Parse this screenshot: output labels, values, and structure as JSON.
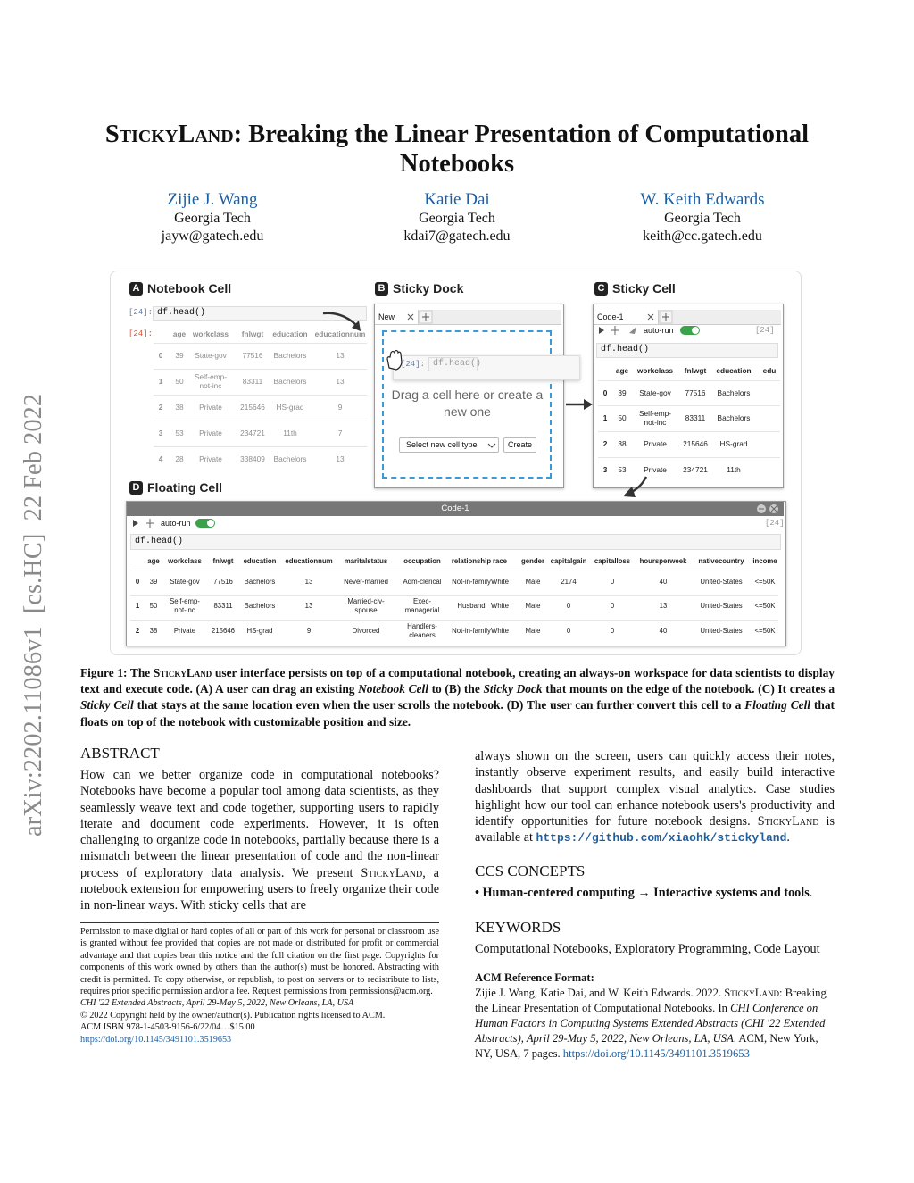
{
  "sidebar": "arXiv:2202.11086v1  [cs.HC]  22 Feb 2022",
  "title": [
    {
      "text": "StickyLand",
      "style": "sc"
    },
    {
      "text": ": Breaking the Linear Presentation of Computational Notebooks"
    }
  ],
  "authors": [
    {
      "name": "Zijie J. Wang",
      "affiliation": "Georgia Tech",
      "email": "jayw@gatech.edu"
    },
    {
      "name": "Katie Dai",
      "affiliation": "Georgia Tech",
      "email": "kdai7@gatech.edu"
    },
    {
      "name": "W. Keith Edwards",
      "affiliation": "Georgia Tech",
      "email": "keith@cc.gatech.edu"
    }
  ],
  "figure": {
    "panel_a": {
      "letter": "A",
      "title": "Notebook Cell",
      "input_prompt": "[24]:",
      "code": "df.head()",
      "output_prompt": "[24]:",
      "table": {
        "columns": [
          "age",
          "workclass",
          "fnlwgt",
          "education",
          "educationnum"
        ],
        "rows": [
          [
            "0",
            "39",
            "State-gov",
            "77516",
            "Bachelors",
            "13"
          ],
          [
            "1",
            "50",
            "Self-emp-not-inc",
            "83311",
            "Bachelors",
            "13"
          ],
          [
            "2",
            "38",
            "Private",
            "215646",
            "HS-grad",
            "9"
          ],
          [
            "3",
            "53",
            "Private",
            "234721",
            "11th",
            "7"
          ],
          [
            "4",
            "28",
            "Private",
            "338409",
            "Bachelors",
            "13"
          ]
        ]
      }
    },
    "panel_b": {
      "letter": "B",
      "title": "Sticky Dock",
      "tab": "New",
      "prompt": "[24]:",
      "code": "df.head()",
      "placeholder": "Drag a cell here or create a new one",
      "select": "Select new cell type",
      "button": "Create"
    },
    "panel_c": {
      "letter": "C",
      "title": "Sticky Cell",
      "tab": "Code-1",
      "toggle": "auto-run",
      "prompt": "[24]",
      "code": "df.head()",
      "table": {
        "columns": [
          "age",
          "workclass",
          "fnlwgt",
          "education",
          "edu"
        ],
        "rows": [
          [
            "0",
            "39",
            "State-gov",
            "77516",
            "Bachelors"
          ],
          [
            "1",
            "50",
            "Self-emp-not-inc",
            "83311",
            "Bachelors"
          ],
          [
            "2",
            "38",
            "Private",
            "215646",
            "HS-grad"
          ],
          [
            "3",
            "53",
            "Private",
            "234721",
            "11th"
          ]
        ]
      }
    },
    "panel_d": {
      "letter": "D",
      "title": "Floating Cell",
      "window_title": "Code-1",
      "toggle": "auto-run",
      "prompt": "[24]",
      "code": "df.head()",
      "table": {
        "columns": [
          "age",
          "workclass",
          "fnlwgt",
          "education",
          "educationnum",
          "maritalstatus",
          "occupation",
          "relationship",
          "race",
          "gender",
          "capitalgain",
          "capitalloss",
          "hoursperweek",
          "nativecountry",
          "income"
        ],
        "rows": [
          [
            "0",
            "39",
            "State-gov",
            "77516",
            "Bachelors",
            "13",
            "Never-married",
            "Adm-clerical",
            "Not-in-family",
            "White",
            "Male",
            "2174",
            "0",
            "40",
            "United-States",
            "<=50K"
          ],
          [
            "1",
            "50",
            "Self-emp-not-inc",
            "83311",
            "Bachelors",
            "13",
            "Married-civ-spouse",
            "Exec-managerial",
            "Husband",
            "White",
            "Male",
            "0",
            "0",
            "13",
            "United-States",
            "<=50K"
          ],
          [
            "2",
            "38",
            "Private",
            "215646",
            "HS-grad",
            "9",
            "Divorced",
            "Handlers-cleaners",
            "Not-in-family",
            "White",
            "Male",
            "0",
            "0",
            "40",
            "United-States",
            "<=50K"
          ]
        ]
      }
    }
  },
  "caption": [
    {
      "text": "Figure 1: The "
    },
    {
      "text": "StickyLand",
      "style": "sc"
    },
    {
      "text": " user interface persists on top of a computational notebook, creating an always-on workspace for data scientists to display text and execute code. (A) A user can drag an existing "
    },
    {
      "text": "Notebook Cell",
      "style": "em"
    },
    {
      "text": " to (B) the "
    },
    {
      "text": "Sticky Dock",
      "style": "em"
    },
    {
      "text": " that mounts on the edge of the notebook. (C) It creates a "
    },
    {
      "text": "Sticky Cell",
      "style": "em"
    },
    {
      "text": " that stays at the same location even when the user scrolls the notebook. (D) The user can further convert this cell to a "
    },
    {
      "text": "Floating Cell",
      "style": "em"
    },
    {
      "text": " that floats on top of the notebook with customizable position and size."
    }
  ],
  "abstract": {
    "heading": "ABSTRACT",
    "left": [
      {
        "text": "How can we better organize code in computational notebooks? Notebooks have become a popular tool among data scientists, as they seamlessly weave text and code together, supporting users to rapidly iterate and document code experiments. However, it is often challenging to organize code in notebooks, partially because there is a mismatch between the linear presentation of code and the non-linear process of exploratory data analysis. We present "
      },
      {
        "text": "StickyLand",
        "style": "sc"
      },
      {
        "text": ", a notebook extension for empowering users to freely organize their code in non-linear ways. With sticky cells that are"
      }
    ],
    "right": [
      {
        "text": "always shown on the screen, users can quickly access their notes, instantly observe experiment results, and easily build interactive dashboards that support complex visual analytics. Case studies highlight how our tool can enhance notebook users's productivity and identify opportunities for future notebook designs. "
      },
      {
        "text": "StickyLand",
        "style": "sc"
      },
      {
        "text": " is available at "
      },
      {
        "text": "https://github.com/xiaohk/stickyland",
        "style": "code"
      },
      {
        "text": "."
      }
    ]
  },
  "permission": {
    "text": "Permission to make digital or hard copies of all or part of this work for personal or classroom use is granted without fee provided that copies are not made or distributed for profit or commercial advantage and that copies bear this notice and the full citation on the first page. Copyrights for components of this work owned by others than the author(s) must be honored. Abstracting with credit is permitted. To copy otherwise, or republish, to post on servers or to redistribute to lists, requires prior specific permission and/or a fee. Request permissions from permissions@acm.org.",
    "venue": "CHI '22 Extended Abstracts, April 29-May 5, 2022, New Orleans, LA, USA",
    "copyright": "© 2022 Copyright held by the owner/author(s). Publication rights licensed to ACM.",
    "isbn": "ACM ISBN 978-1-4503-9156-6/22/04…$15.00",
    "doi": "https://doi.org/10.1145/3491101.3519653"
  },
  "ccs": {
    "heading": "CCS CONCEPTS",
    "text": [
      {
        "text": "• Human-centered computing → Interactive systems and tools",
        "style": "b"
      },
      {
        "text": "."
      }
    ]
  },
  "keywords": {
    "heading": "KEYWORDS",
    "text": "Computational Notebooks, Exploratory Programming, Code Layout"
  },
  "reference": {
    "heading": "ACM Reference Format:",
    "text": [
      {
        "text": "Zijie J. Wang, Katie Dai, and W. Keith Edwards. 2022. "
      },
      {
        "text": "StickyLand",
        "style": "sc"
      },
      {
        "text": ": Breaking the Linear Presentation of Computational Notebooks. In "
      },
      {
        "text": "CHI Conference on Human Factors in Computing Systems Extended Abstracts (CHI '22 Extended Abstracts), April 29-May 5, 2022, New Orleans, LA, USA",
        "style": "em"
      },
      {
        "text": ". ACM, New York, NY, USA, 7 pages. "
      },
      {
        "text": "https://doi.org/10.1145/3491101.3519653",
        "style": "link"
      }
    ]
  }
}
